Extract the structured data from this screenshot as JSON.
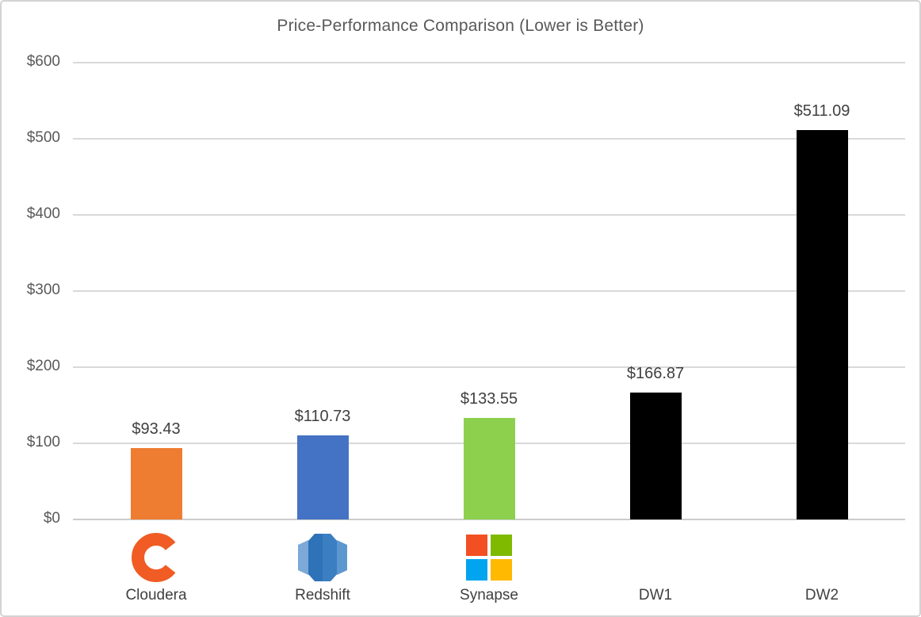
{
  "page": {
    "title": "Price-Performance Comparison (Lower is Better)"
  },
  "chart_data": {
    "type": "bar",
    "title": "Price-Performance Comparison (Lower is Better)",
    "categories": [
      "Cloudera",
      "Redshift",
      "Synapse",
      "DW1",
      "DW2"
    ],
    "values": [
      93.43,
      110.73,
      133.55,
      166.87,
      511.09
    ],
    "value_labels": [
      "$93.43",
      "$110.73",
      "$133.55",
      "$166.87",
      "$511.09"
    ],
    "bar_colors": [
      "#EE7C31",
      "#4472C4",
      "#8CD04E",
      "#000000",
      "#000000"
    ],
    "category_icons": [
      "cloudera-logo",
      "redshift-logo",
      "microsoft-logo",
      "",
      ""
    ],
    "xlabel": "",
    "ylabel": "",
    "ylim": [
      0,
      600
    ],
    "y_ticks": [
      0,
      100,
      200,
      300,
      400,
      500,
      600
    ],
    "y_tick_labels": [
      "$0",
      "$100",
      "$200",
      "$300",
      "$400",
      "$500",
      "$600"
    ],
    "grid": true,
    "legend": "none"
  },
  "colors": {
    "background": "#FFFFFF",
    "frame_border": "#D3D3D3",
    "gridline": "#D9D9D9",
    "baseline": "#CCCCCC",
    "axis_text": "#595959",
    "label_text": "#404040",
    "cloudera_orange": "#F05C24",
    "redshift_center": "#2E72B8",
    "redshift_center_light": "#3B7EC1",
    "redshift_side_left": "#7CA9D8",
    "redshift_side_right": "#5D97D0",
    "ms_red": "#F25022",
    "ms_green": "#7FBA00",
    "ms_blue": "#00A4EF",
    "ms_yellow": "#FFB900"
  }
}
